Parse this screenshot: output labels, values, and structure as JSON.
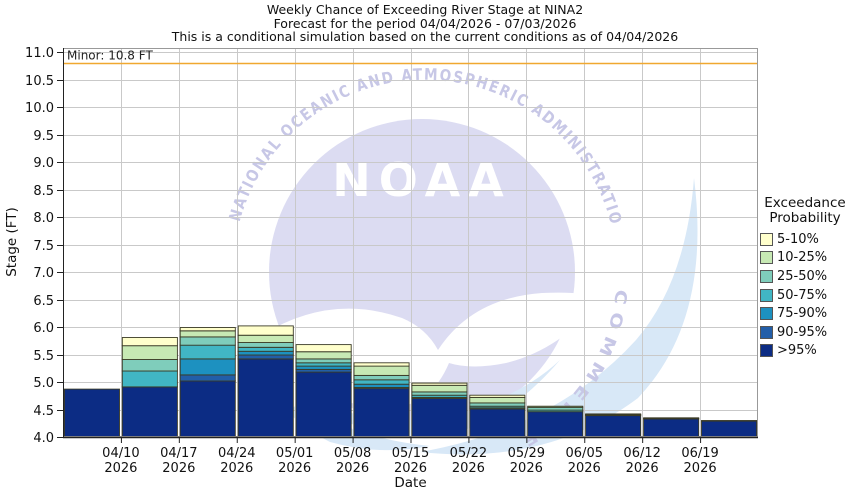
{
  "title": {
    "line1": "Weekly Chance of Exceeding River Stage at NINA2",
    "line2": "Forecast for the period 04/04/2026 - 07/03/2026",
    "line3": "This is a conditional simulation based on the current conditions as of 04/04/2026"
  },
  "legend": {
    "title_line1": "Exceedance",
    "title_line2": "Probability",
    "items": [
      {
        "label": "5-10%",
        "color": "#ffffcc"
      },
      {
        "label": "10-25%",
        "color": "#c7e9b4"
      },
      {
        "label": "25-50%",
        "color": "#7fcdbb"
      },
      {
        "label": "50-75%",
        "color": "#41b6c4"
      },
      {
        "label": "75-90%",
        "color": "#1d91c0"
      },
      {
        "label": "90-95%",
        "color": "#225ea8"
      },
      {
        "label": ">95%",
        "color": "#0c2c84"
      }
    ]
  },
  "axes": {
    "x_label": "Date",
    "y_label": "Stage (FT)",
    "y_tick_labels": [
      "4.0",
      "4.5",
      "5.0",
      "5.5",
      "6.0",
      "6.5",
      "7.0",
      "7.5",
      "8.0",
      "8.5",
      "9.0",
      "9.5",
      "10.0",
      "10.5",
      "11.0"
    ],
    "x_ticks": [
      {
        "date": "04/10",
        "year": "2026"
      },
      {
        "date": "04/17",
        "year": "2026"
      },
      {
        "date": "04/24",
        "year": "2026"
      },
      {
        "date": "05/01",
        "year": "2026"
      },
      {
        "date": "05/08",
        "year": "2026"
      },
      {
        "date": "05/15",
        "year": "2026"
      },
      {
        "date": "05/22",
        "year": "2026"
      },
      {
        "date": "05/29",
        "year": "2026"
      },
      {
        "date": "06/05",
        "year": "2026"
      },
      {
        "date": "06/12",
        "year": "2026"
      },
      {
        "date": "06/19",
        "year": "2026"
      }
    ]
  },
  "threshold": {
    "label": "Minor: 10.8 FT",
    "stage_ft": 10.8,
    "line_color": "#f0a830"
  },
  "watermark": {
    "text": "NOAA",
    "ring_text_top": "NATIONAL OCEANIC AND ATMOSPHERIC ADMINISTRATION",
    "ring_text_bottom": "COMMERCE"
  },
  "chart_data": {
    "type": "bar",
    "stacked": true,
    "title": "Weekly Chance of Exceeding River Stage at NINA2",
    "xlabel": "Date",
    "ylabel": "Stage (FT)",
    "ylim": [
      4.0,
      11.1
    ],
    "y_tick_step": 0.5,
    "grid": true,
    "legend_position": "right",
    "baseline_ft": 4.0,
    "num_weekly_bars": 12,
    "boundary_tick_dates": [
      "04/10/2026",
      "04/17/2026",
      "04/24/2026",
      "05/01/2026",
      "05/08/2026",
      "05/15/2026",
      "05/22/2026",
      "05/29/2026",
      "06/05/2026",
      "06/12/2026",
      "06/19/2026"
    ],
    "threshold": {
      "name": "Minor",
      "stage_ft": 10.8
    },
    "bands_note": "Each band value is the stage (FT) at the top of that exceedance-probability color segment for each weekly bar; bars drawn bottom-to-top in listed order from a 4.0 FT baseline.",
    "bands": [
      {
        "name": ">95%",
        "color": "#0c2c84",
        "tops": [
          4.87,
          4.91,
          5.02,
          5.42,
          5.18,
          4.88,
          4.7,
          4.51,
          4.46,
          4.39,
          4.33,
          4.29
        ]
      },
      {
        "name": "90-95%",
        "color": "#225ea8",
        "tops": [
          4.87,
          4.91,
          5.13,
          5.49,
          5.23,
          4.9,
          4.7,
          4.51,
          4.46,
          4.39,
          4.33,
          4.29
        ]
      },
      {
        "name": "75-90%",
        "color": "#1d91c0",
        "tops": [
          4.87,
          4.91,
          5.42,
          5.56,
          5.29,
          4.96,
          4.72,
          4.53,
          4.46,
          4.39,
          4.33,
          4.29
        ]
      },
      {
        "name": "50-75%",
        "color": "#41b6c4",
        "tops": [
          4.87,
          5.2,
          5.67,
          5.63,
          5.35,
          5.04,
          4.76,
          4.56,
          4.49,
          4.4,
          4.33,
          4.29
        ]
      },
      {
        "name": "25-50%",
        "color": "#7fcdbb",
        "tops": [
          4.87,
          5.41,
          5.82,
          5.72,
          5.42,
          5.12,
          4.82,
          4.62,
          4.54,
          4.41,
          4.34,
          4.29
        ]
      },
      {
        "name": "10-25%",
        "color": "#c7e9b4",
        "tops": [
          4.87,
          5.66,
          5.93,
          5.85,
          5.55,
          5.29,
          4.94,
          4.72,
          4.56,
          4.42,
          4.35,
          4.3
        ]
      },
      {
        "name": "5-10%",
        "color": "#ffffcc",
        "tops": [
          4.87,
          5.81,
          5.99,
          6.02,
          5.68,
          5.35,
          4.98,
          4.76,
          4.56,
          4.42,
          4.35,
          4.3
        ]
      }
    ]
  }
}
